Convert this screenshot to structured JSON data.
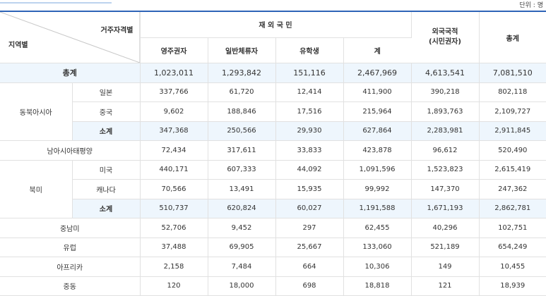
{
  "unit": "단위 : 명",
  "header": {
    "criteria_label": "거주자격별",
    "region_label": "지역별",
    "overseas_korean": "재 외 국 민",
    "foreign_citizen": "외국국적\n(시민권자)",
    "total": "총계",
    "sub": [
      "영주권자",
      "일반체류자",
      "유학생",
      "계"
    ]
  },
  "grand_total": {
    "label": "총계",
    "values": [
      "1,023,011",
      "1,293,842",
      "151,116",
      "2,467,969",
      "4,613,541",
      "7,081,510"
    ]
  },
  "groups": {
    "northeast_asia": {
      "label": "동북아시아",
      "rows": [
        {
          "label": "일본",
          "values": [
            "337,766",
            "61,720",
            "12,414",
            "411,900",
            "390,218",
            "802,118"
          ]
        },
        {
          "label": "중국",
          "values": [
            "9,602",
            "188,846",
            "17,516",
            "215,964",
            "1,893,763",
            "2,109,727"
          ]
        },
        {
          "label": "소계",
          "values": [
            "347,368",
            "250,566",
            "29,930",
            "627,864",
            "2,283,981",
            "2,911,845"
          ]
        }
      ]
    },
    "south_asia_pacific": {
      "label": "남아시아태평양",
      "values": [
        "72,434",
        "317,611",
        "33,833",
        "423,878",
        "96,612",
        "520,490"
      ]
    },
    "north_america": {
      "label": "북미",
      "rows": [
        {
          "label": "미국",
          "values": [
            "440,171",
            "607,333",
            "44,092",
            "1,091,596",
            "1,523,823",
            "2,615,419"
          ]
        },
        {
          "label": "캐나다",
          "values": [
            "70,566",
            "13,491",
            "15,935",
            "99,992",
            "147,370",
            "247,362"
          ]
        },
        {
          "label": "소계",
          "values": [
            "510,737",
            "620,824",
            "60,027",
            "1,191,588",
            "1,671,193",
            "2,862,781"
          ]
        }
      ]
    },
    "latin_america": {
      "label": "중남미",
      "values": [
        "52,706",
        "9,452",
        "297",
        "62,455",
        "40,296",
        "102,751"
      ]
    },
    "europe": {
      "label": "유럽",
      "values": [
        "37,488",
        "69,905",
        "25,667",
        "133,060",
        "521,189",
        "654,249"
      ]
    },
    "africa": {
      "label": "아프리카",
      "values": [
        "2,158",
        "7,484",
        "664",
        "10,306",
        "149",
        "10,455"
      ]
    },
    "middle_east": {
      "label": "중동",
      "values": [
        "120",
        "18,000",
        "698",
        "18,818",
        "121",
        "18,939"
      ]
    }
  }
}
